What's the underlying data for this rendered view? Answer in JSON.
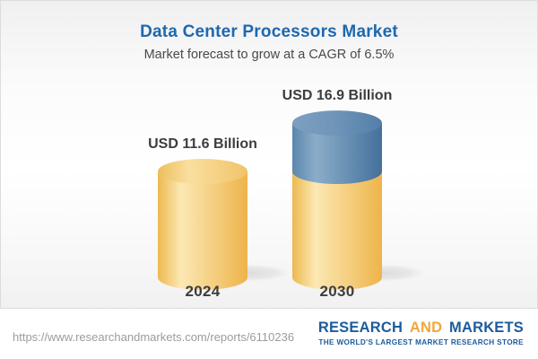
{
  "header": {
    "title": "Data Center Processors Market",
    "subtitle": "Market forecast to grow at a CAGR of 6.5%"
  },
  "chart_data": {
    "type": "bar",
    "subtype": "3d-cylinder-columns",
    "title": "Data Center Processors Market",
    "subtitle": "Market forecast to grow at a CAGR of 6.5%",
    "categories": [
      "2024",
      "2030"
    ],
    "values": [
      11.6,
      16.9
    ],
    "value_labels": [
      "USD 11.6 Billion",
      "USD 16.9 Billion"
    ],
    "unit": "USD Billion",
    "cagr_pct": 6.5,
    "growth_segment": {
      "bar": "2030",
      "from_value": 11.6,
      "to_value": 16.9,
      "note": "top segment of 2030 cylinder shown in blue (growth above 2024 level)"
    },
    "ylim": [
      0,
      18
    ],
    "grid": false,
    "axes_shown": false,
    "legend": false
  },
  "colors": {
    "title_blue": "#1e68ae",
    "subtitle_gray": "#4a4a4a",
    "label_dark": "#3d3d3d",
    "card_border": "#dcdcdc",
    "yellow_body_gradient": [
      "#ecb950",
      "#fce8b4",
      "#eeb44a"
    ],
    "yellow_cap_gradient": [
      "#edbf5e",
      "#f9df9e",
      "#f0c469"
    ],
    "blue_body_gradient": [
      "#5b86ae",
      "#8badc9",
      "#44709c"
    ],
    "blue_cap_gradient": [
      "#7ea0c0",
      "#6e94b8",
      "#527fa9"
    ],
    "shadow_rgba": "0,0,0"
  },
  "footer": {
    "url": "https://www.researchandmarkets.com/reports/6110236",
    "logo": {
      "word1": "RESEARCH",
      "word2": "AND",
      "word3": "MARKETS",
      "tagline": "THE WORLD'S LARGEST MARKET RESEARCH STORE",
      "blue": "#1c5c9b",
      "gold": "#f1a63b"
    }
  }
}
